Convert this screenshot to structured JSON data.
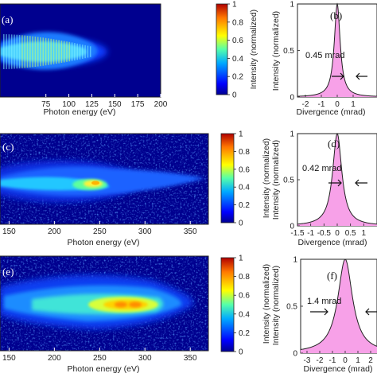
{
  "colors": {
    "fill_pink": "#f7a1e8",
    "line_dark": "#222222",
    "map_background": "#00008f"
  },
  "chart_data": [
    {
      "panel": "(a)",
      "type": "heatmap",
      "xlabel": "Photon energy (eV)",
      "xticks": [
        "75",
        "100",
        "125",
        "150",
        "175",
        "200"
      ],
      "xlim": [
        25,
        200
      ],
      "colorbar": {
        "label": "Intensity (normalized)",
        "ticks": [
          "0",
          "0.2",
          "0.4",
          "0.6",
          "0.8",
          "1"
        ],
        "range": [
          0,
          1
        ],
        "colormap": "jet"
      }
    },
    {
      "panel": "(b)",
      "type": "area",
      "xlabel": "Divergence (mrad)",
      "ylabel": "Intensity (normalized)",
      "xticks": [
        "-2",
        "-1",
        "0",
        "1"
      ],
      "yticks": [
        "0",
        "0.5",
        "1"
      ],
      "xlim": [
        -2.5,
        2.5
      ],
      "ylim": [
        0,
        1
      ],
      "annotation": "0.45 mrad",
      "fwhm_mrad": 0.45
    },
    {
      "panel": "(c)",
      "type": "heatmap",
      "xlabel": "Photon energy (eV)",
      "xticks": [
        "150",
        "200",
        "250",
        "300",
        "350"
      ],
      "xlim": [
        140,
        370
      ],
      "colorbar": {
        "label": "Intensity (normalized)",
        "ticks": [
          "0",
          "0.2",
          "0.4",
          "0.6",
          "0.8",
          "1"
        ],
        "range": [
          0,
          1
        ],
        "colormap": "jet"
      }
    },
    {
      "panel": "(d)",
      "type": "area",
      "xlabel": "Divergence (mrad)",
      "ylabel": "Intensity (normalized)",
      "xticks": [
        "-1.5",
        "-1",
        "-0.5",
        "0",
        "0.5",
        "1"
      ],
      "yticks": [
        "0",
        "0.5",
        "1"
      ],
      "xlim": [
        -1.5,
        1.5
      ],
      "ylim": [
        0,
        1
      ],
      "annotation": "0.42 mrad",
      "fwhm_mrad": 0.42
    },
    {
      "panel": "(e)",
      "type": "heatmap",
      "xlabel": "Photon energy (eV)",
      "xticks": [
        "150",
        "200",
        "250",
        "300",
        "350"
      ],
      "xlim": [
        140,
        370
      ],
      "colorbar": {
        "label": "Intensity (normalized)",
        "ticks": [
          "0",
          "0.2",
          "0.4",
          "0.6",
          "0.8",
          "1"
        ],
        "range": [
          0,
          1
        ],
        "colormap": "jet"
      }
    },
    {
      "panel": "(f)",
      "type": "area",
      "xlabel": "Divergence (mrad)",
      "ylabel": "Intensity (normalized)",
      "xticks": [
        "-3",
        "-2",
        "-1",
        "0",
        "1",
        "2"
      ],
      "yticks": [
        "0",
        "0.5",
        "1"
      ],
      "xlim": [
        -3.5,
        2.5
      ],
      "ylim": [
        0,
        1
      ],
      "annotation": "1.4 mrad",
      "fwhm_mrad": 1.4
    }
  ]
}
